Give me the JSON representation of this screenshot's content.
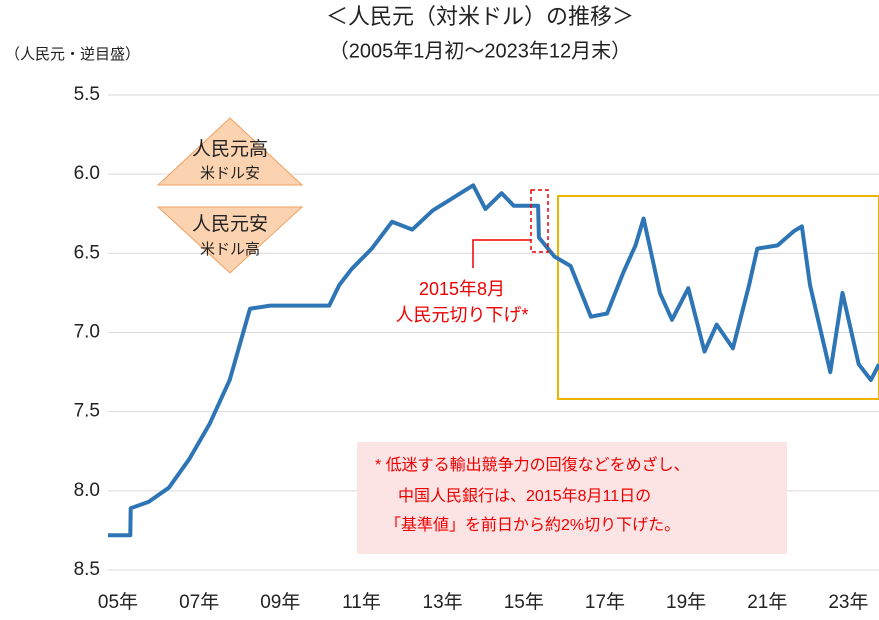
{
  "chart_data": {
    "type": "line",
    "title": "＜人民元（対米ドル）の推移＞",
    "subtitle": "（2005年1月初～2023年12月末）",
    "y_label": "（人民元・逆目盛）",
    "y_inverted": true,
    "xlim": [
      2005,
      2024
    ],
    "xticks": [
      {
        "value": 2005,
        "label": "05年"
      },
      {
        "value": 2007,
        "label": "07年"
      },
      {
        "value": 2009,
        "label": "09年"
      },
      {
        "value": 2011,
        "label": "11年"
      },
      {
        "value": 2013,
        "label": "13年"
      },
      {
        "value": 2015,
        "label": "15年"
      },
      {
        "value": 2017,
        "label": "17年"
      },
      {
        "value": 2019,
        "label": "19年"
      },
      {
        "value": 2021,
        "label": "21年"
      },
      {
        "value": 2023,
        "label": "23年"
      }
    ],
    "ylim": [
      5.5,
      8.5
    ],
    "yticks": [
      5.5,
      {
        "value": 6.0,
        "label": "6.0"
      },
      6.5,
      {
        "value": 7.0,
        "label": "7.0"
      },
      7.5,
      {
        "value": 8.0,
        "label": "8.0"
      },
      8.5
    ],
    "grid": true,
    "series": [
      {
        "name": "人民元",
        "color": "#2e75b6",
        "x": [
          2005.0,
          2005.55,
          2005.56,
          2006.0,
          2006.5,
          2007.0,
          2007.5,
          2008.0,
          2008.5,
          2009.0,
          2010.0,
          2010.45,
          2010.7,
          2011.0,
          2011.5,
          2012.0,
          2012.5,
          2013.0,
          2013.5,
          2014.0,
          2014.3,
          2014.7,
          2015.0,
          2015.6,
          2015.62,
          2016.0,
          2016.4,
          2016.9,
          2017.3,
          2017.7,
          2018.0,
          2018.2,
          2018.6,
          2018.9,
          2019.3,
          2019.7,
          2020.0,
          2020.4,
          2020.8,
          2021.0,
          2021.5,
          2021.9,
          2022.1,
          2022.3,
          2022.8,
          2022.95,
          2023.1,
          2023.5,
          2023.8,
          2024.0
        ],
        "values": [
          8.28,
          8.28,
          8.11,
          8.07,
          7.98,
          7.8,
          7.58,
          7.3,
          6.85,
          6.83,
          6.83,
          6.83,
          6.7,
          6.6,
          6.47,
          6.3,
          6.35,
          6.23,
          6.15,
          6.07,
          6.22,
          6.12,
          6.2,
          6.2,
          6.4,
          6.52,
          6.58,
          6.9,
          6.88,
          6.62,
          6.45,
          6.28,
          6.75,
          6.92,
          6.72,
          7.12,
          6.95,
          7.1,
          6.7,
          6.47,
          6.45,
          6.36,
          6.33,
          6.7,
          7.25,
          7.0,
          6.75,
          7.2,
          7.3,
          7.2
        ]
      }
    ],
    "badges": [
      {
        "line1": "人民元高",
        "line2": "米ドル安"
      },
      {
        "line1": "人民元安",
        "line2": "米ドル高"
      }
    ],
    "event": {
      "line1": "2015年8月",
      "line2": "人民元切り下げ*"
    },
    "note": [
      "* 低迷する輸出競争力の回復などをめざし、",
      "中国人民銀行は、2015年8月11日の",
      "「基準値」を前日から約2%切り下げた。"
    ]
  }
}
